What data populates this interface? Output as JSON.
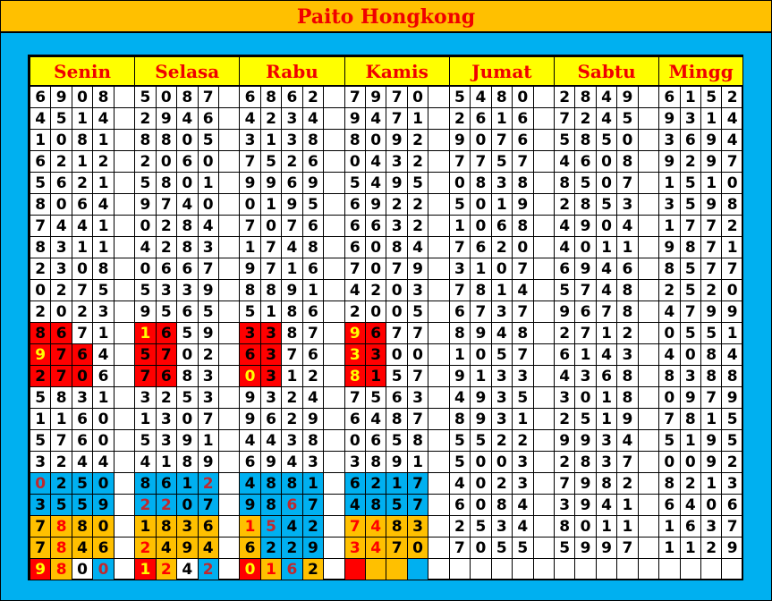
{
  "title": "Paito Hongkong",
  "palette": {
    "title_bg": "#FFC000",
    "background": "#00B0F0",
    "header_bg": "#FFFF00",
    "header_text": "#F00000",
    "R": {
      "bg": "#FF0000",
      "fg": "#000000"
    },
    "RY": {
      "bg": "#FF0000",
      "fg": "#FFFF00"
    },
    "B": {
      "bg": "#00B0F0",
      "fg": "#000000"
    },
    "BD": {
      "bg": "#00B0F0",
      "fg": "#C0282D"
    },
    "O": {
      "bg": "#FFC000",
      "fg": "#000000"
    },
    "OR": {
      "bg": "#FFC000",
      "fg": "#FF0000"
    }
  },
  "days": [
    "Senin",
    "Selasa",
    "Rabu",
    "Kamis",
    "Jumat",
    "Sabtu",
    "Mingg"
  ],
  "rows": [
    [
      "6908",
      "5087",
      "6862",
      "7970",
      "5480",
      "2849",
      "6152"
    ],
    [
      "4514",
      "2946",
      "4234",
      "9471",
      "2616",
      "7245",
      "9314"
    ],
    [
      "1081",
      "8805",
      "3138",
      "8092",
      "9076",
      "5850",
      "3694"
    ],
    [
      "6212",
      "2060",
      "7526",
      "0432",
      "7757",
      "4608",
      "9297"
    ],
    [
      "5621",
      "5801",
      "9969",
      "5495",
      "0838",
      "8507",
      "1510"
    ],
    [
      "8064",
      "9740",
      "0195",
      "6922",
      "5019",
      "2853",
      "3598"
    ],
    [
      "7441",
      "0284",
      "7076",
      "6632",
      "1068",
      "4904",
      "1772"
    ],
    [
      "8311",
      "4283",
      "1748",
      "6084",
      "7620",
      "4011",
      "9871"
    ],
    [
      "2308",
      "0667",
      "9716",
      "7079",
      "3107",
      "6946",
      "8577"
    ],
    [
      "0275",
      "5339",
      "8891",
      "4203",
      "7814",
      "5748",
      "2520"
    ],
    [
      "2023",
      "9565",
      "5186",
      "2005",
      "6737",
      "9678",
      "4799"
    ],
    [
      "8671",
      "1659",
      "3387",
      "9677",
      "8948",
      "2712",
      "0551"
    ],
    [
      "9764",
      "5702",
      "6376",
      "3300",
      "1057",
      "6143",
      "4084"
    ],
    [
      "2706",
      "7683",
      "0312",
      "8157",
      "9133",
      "4368",
      "8388"
    ],
    [
      "5831",
      "3253",
      "9324",
      "7563",
      "4935",
      "3018",
      "0979"
    ],
    [
      "1160",
      "1307",
      "9629",
      "6487",
      "8931",
      "2519",
      "7815"
    ],
    [
      "5760",
      "5391",
      "4438",
      "0658",
      "5522",
      "9934",
      "5195"
    ],
    [
      "3244",
      "4189",
      "6943",
      "3891",
      "5003",
      "2837",
      "0092"
    ],
    [
      "0250",
      "8612",
      "4881",
      "6217",
      "4023",
      "7982",
      "8213"
    ],
    [
      "3559",
      "2207",
      "9867",
      "4857",
      "6084",
      "3941",
      "6406"
    ],
    [
      "7880",
      "1836",
      "1542",
      "7483",
      "2534",
      "8011",
      "1637"
    ],
    [
      "7846",
      "2494",
      "6229",
      "3470",
      "7055",
      "5997",
      "1129"
    ],
    [
      "9800",
      "1242",
      "0162",
      "",
      "",
      "",
      ""
    ]
  ],
  "highlights": {
    "11": [
      [
        "R",
        "R",
        "",
        ""
      ],
      [
        "RY",
        "R",
        "",
        ""
      ],
      [
        "R",
        "R",
        "",
        ""
      ],
      [
        "RY",
        "R",
        "",
        ""
      ]
    ],
    "12": [
      [
        "RY",
        "R",
        "R",
        ""
      ],
      [
        "R",
        "R",
        "",
        ""
      ],
      [
        "R",
        "R",
        "",
        ""
      ],
      [
        "RY",
        "R",
        "",
        ""
      ]
    ],
    "13": [
      [
        "R",
        "R",
        "R",
        ""
      ],
      [
        "R",
        "R",
        "",
        ""
      ],
      [
        "RY",
        "R",
        "",
        ""
      ],
      [
        "RY",
        "R",
        "",
        ""
      ]
    ],
    "18": [
      [
        "BD",
        "B",
        "B",
        "B"
      ],
      [
        "B",
        "B",
        "B",
        "BD"
      ],
      [
        "B",
        "B",
        "B",
        "B"
      ],
      [
        "B",
        "B",
        "B",
        "B"
      ]
    ],
    "19": [
      [
        "B",
        "B",
        "B",
        "B"
      ],
      [
        "BD",
        "BD",
        "B",
        "B"
      ],
      [
        "B",
        "B",
        "BD",
        "B"
      ],
      [
        "B",
        "B",
        "B",
        "B"
      ]
    ],
    "20": [
      [
        "O",
        "OR",
        "O",
        "O"
      ],
      [
        "O",
        "O",
        "O",
        "O"
      ],
      [
        "OR",
        "BD",
        "B",
        "B"
      ],
      [
        "OR",
        "OR",
        "O",
        "O"
      ]
    ],
    "21": [
      [
        "O",
        "OR",
        "O",
        "O"
      ],
      [
        "OR",
        "O",
        "O",
        "O"
      ],
      [
        "O",
        "B",
        "B",
        "B"
      ],
      [
        "OR",
        "OR",
        "O",
        "O"
      ]
    ],
    "22": [
      [
        "RY",
        "OR",
        "",
        "BD"
      ],
      [
        "RY",
        "OR",
        "",
        "BD"
      ],
      [
        "RY",
        "OR",
        "BD",
        "O"
      ],
      [
        "R",
        "O",
        "O",
        "B"
      ]
    ]
  }
}
